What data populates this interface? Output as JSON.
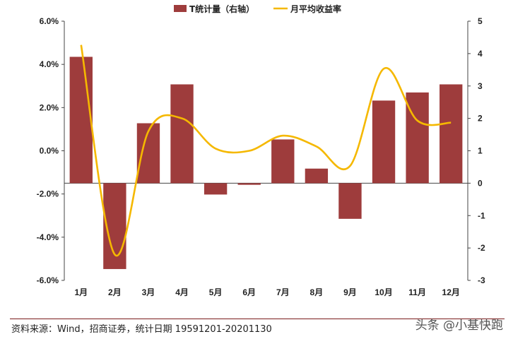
{
  "chart_data": {
    "type": "bar+line",
    "categories": [
      "1月",
      "2月",
      "3月",
      "4月",
      "5月",
      "6月",
      "7月",
      "8月",
      "9月",
      "10月",
      "11月",
      "12月"
    ],
    "series": [
      {
        "name": "T统计量（右轴）",
        "type": "bar",
        "axis": "right",
        "color": "#9e3c3c",
        "values": [
          3.9,
          -2.65,
          1.85,
          3.05,
          -0.35,
          -0.05,
          1.35,
          0.45,
          -1.1,
          2.55,
          2.8,
          3.05
        ]
      },
      {
        "name": "月平均收益率",
        "type": "line",
        "axis": "left",
        "color": "#f5b800",
        "values": [
          4.9,
          -4.8,
          0.9,
          1.5,
          0.1,
          0.0,
          0.7,
          0.2,
          -0.7,
          3.8,
          1.4,
          1.3
        ]
      }
    ],
    "y_left": {
      "range": [
        -6,
        6
      ],
      "ticks": [
        "-6.0%",
        "-4.0%",
        "-2.0%",
        "0.0%",
        "2.0%",
        "4.0%",
        "6.0%"
      ]
    },
    "y_right": {
      "range": [
        -3,
        5
      ],
      "ticks": [
        "-3",
        "-2",
        "-1",
        "0",
        "1",
        "2",
        "3",
        "4",
        "5"
      ]
    },
    "legend_position": "top-center",
    "grid": false
  },
  "source_text": "资料来源：Wind，招商证券，统计日期 19591201-20201130",
  "watermark": "头条 @小基快跑"
}
